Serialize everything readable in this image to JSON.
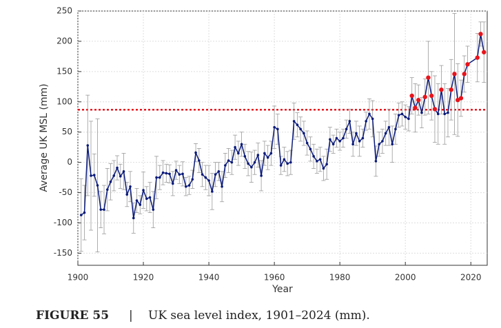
{
  "chart_data": {
    "type": "errorbar_line",
    "x_label": "Year",
    "y_label": "Average UK MSL (mm)",
    "figure_label": "FIGURE 55",
    "caption_separator": "|",
    "caption": "UK sea level index, 1901–2024 (mm).",
    "x": [
      1901,
      1902,
      1903,
      1904,
      1905,
      1906,
      1907,
      1908,
      1909,
      1910,
      1911,
      1912,
      1913,
      1914,
      1915,
      1916,
      1917,
      1918,
      1919,
      1920,
      1921,
      1922,
      1923,
      1924,
      1925,
      1926,
      1927,
      1928,
      1929,
      1930,
      1931,
      1932,
      1933,
      1934,
      1935,
      1936,
      1937,
      1938,
      1939,
      1940,
      1941,
      1942,
      1943,
      1944,
      1945,
      1946,
      1947,
      1948,
      1949,
      1950,
      1951,
      1952,
      1953,
      1954,
      1955,
      1956,
      1957,
      1958,
      1959,
      1960,
      1961,
      1962,
      1963,
      1964,
      1965,
      1966,
      1967,
      1968,
      1969,
      1970,
      1971,
      1972,
      1973,
      1974,
      1975,
      1976,
      1977,
      1978,
      1979,
      1980,
      1981,
      1982,
      1983,
      1984,
      1985,
      1986,
      1987,
      1988,
      1989,
      1990,
      1991,
      1992,
      1993,
      1994,
      1995,
      1996,
      1997,
      1998,
      1999,
      2000,
      2001,
      2002,
      2003,
      2004,
      2005,
      2006,
      2007,
      2008,
      2009,
      2010,
      2011,
      2012,
      2013,
      2014,
      2015,
      2016,
      2017,
      2018,
      2019,
      2022,
      2023,
      2024
    ],
    "series": [
      {
        "color": "#0a1a7a",
        "highlight_color": "#e8141c",
        "error_color": "#999999",
        "values": [
          -87,
          -83,
          28,
          -22,
          -21,
          -38,
          -78,
          -78,
          -45,
          -32,
          -22,
          -9,
          -23,
          -15,
          -53,
          -40,
          -92,
          -63,
          -70,
          -46,
          -60,
          -58,
          -78,
          -25,
          -25,
          -17,
          -18,
          -19,
          -35,
          -13,
          -20,
          -19,
          -40,
          -38,
          -28,
          16,
          3,
          -20,
          -25,
          -30,
          -48,
          -20,
          -15,
          -40,
          -5,
          3,
          0,
          25,
          15,
          30,
          10,
          -2,
          -8,
          0,
          12,
          -22,
          15,
          8,
          15,
          58,
          55,
          -5,
          5,
          -2,
          0,
          68,
          62,
          55,
          48,
          32,
          22,
          10,
          2,
          5,
          -10,
          -3,
          38,
          30,
          40,
          35,
          40,
          55,
          68,
          30,
          48,
          35,
          40,
          68,
          80,
          72,
          2,
          30,
          35,
          48,
          58,
          30,
          55,
          78,
          80,
          75,
          72,
          110,
          90,
          103,
          82,
          108,
          140,
          110,
          88,
          80,
          120,
          80,
          82,
          120,
          146,
          103,
          106,
          146,
          162,
          173,
          212,
          182
        ],
        "errors": [
          60,
          45,
          83,
          90,
          35,
          110,
          30,
          40,
          35,
          30,
          25,
          20,
          20,
          30,
          20,
          25,
          25,
          20,
          15,
          30,
          20,
          25,
          30,
          35,
          20,
          20,
          15,
          15,
          20,
          15,
          15,
          20,
          15,
          15,
          15,
          15,
          20,
          20,
          20,
          25,
          30,
          20,
          15,
          25,
          20,
          20,
          20,
          20,
          20,
          20,
          20,
          20,
          25,
          20,
          20,
          25,
          20,
          20,
          20,
          35,
          25,
          15,
          20,
          20,
          20,
          30,
          20,
          20,
          20,
          20,
          20,
          20,
          20,
          20,
          20,
          25,
          20,
          15,
          15,
          15,
          15,
          15,
          20,
          20,
          20,
          25,
          15,
          15,
          25,
          30,
          25,
          20,
          20,
          20,
          30,
          30,
          25,
          20,
          20,
          20,
          20,
          30,
          40,
          25,
          25,
          30,
          60,
          40,
          55,
          50,
          40,
          50,
          40,
          50,
          100,
          60,
          30,
          30,
          30,
          40,
          20,
          50
        ]
      }
    ],
    "threshold": 87,
    "threshold_color": "#e8141c",
    "xlim": [
      1900,
      2025
    ],
    "xticks": [
      1900,
      1920,
      1940,
      1960,
      1980,
      2000,
      2020
    ],
    "ylim": [
      -170,
      250
    ],
    "yticks": [
      -150,
      -100,
      -50,
      0,
      50,
      100,
      150,
      200,
      250
    ],
    "grid": true
  }
}
